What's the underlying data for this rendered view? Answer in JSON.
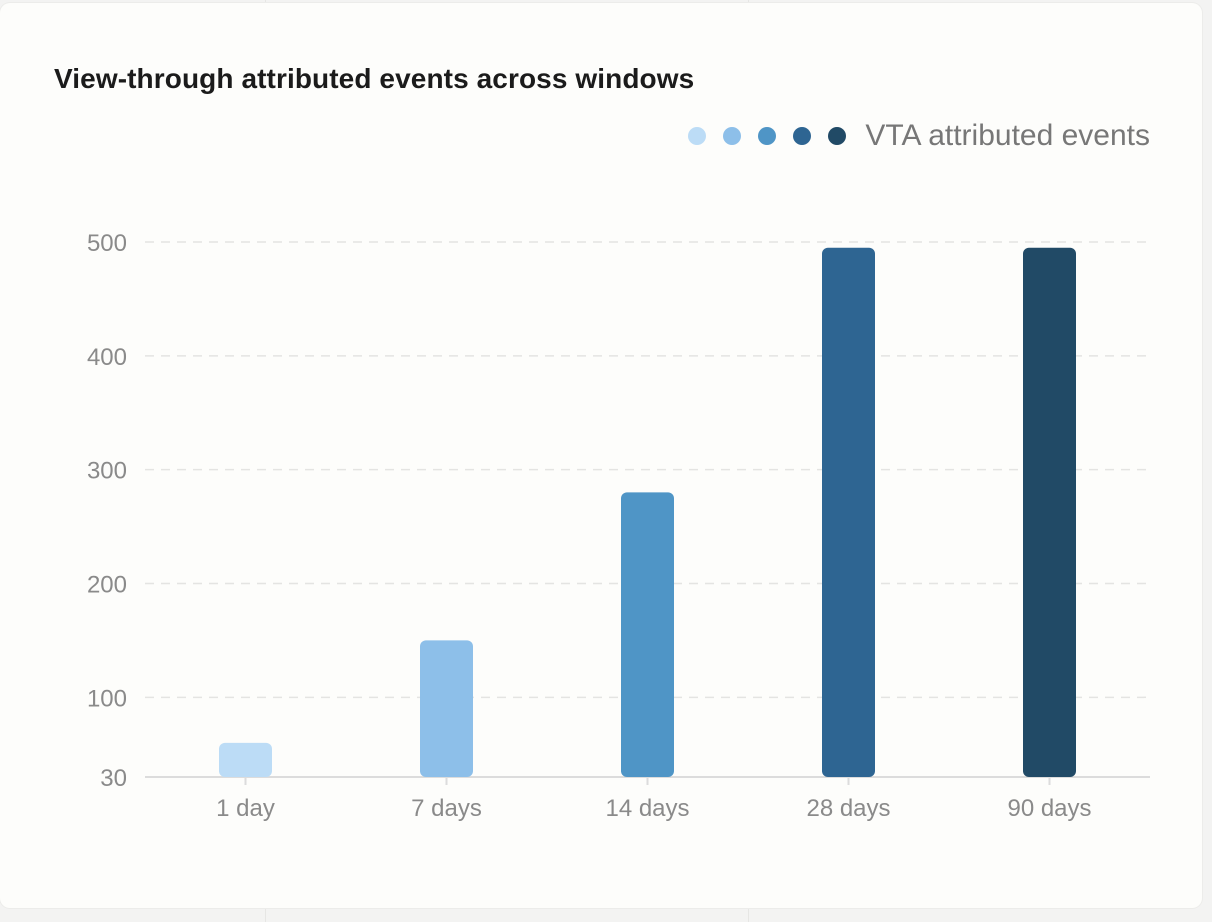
{
  "card": {
    "title": "View-through attributed events across windows"
  },
  "legend": {
    "label": "VTA attributed events",
    "colors": [
      "#bcdcf6",
      "#8dbfe9",
      "#4f95c6",
      "#2e6592",
      "#214a66"
    ]
  },
  "chart_data": {
    "type": "bar",
    "title": "View-through attributed events across windows",
    "xlabel": "",
    "ylabel": "",
    "categories": [
      "1 day",
      "7 days",
      "14 days",
      "28 days",
      "90 days"
    ],
    "series": [
      {
        "name": "VTA attributed events",
        "values": [
          60,
          150,
          280,
          495,
          495
        ],
        "colors": [
          "#bcdcf6",
          "#8dbfe9",
          "#4f95c6",
          "#2e6592",
          "#214a66"
        ]
      }
    ],
    "yticks": [
      30,
      100,
      200,
      300,
      400,
      500
    ],
    "ylim": [
      30,
      500
    ],
    "grid": true,
    "legend_position": "top-right"
  }
}
